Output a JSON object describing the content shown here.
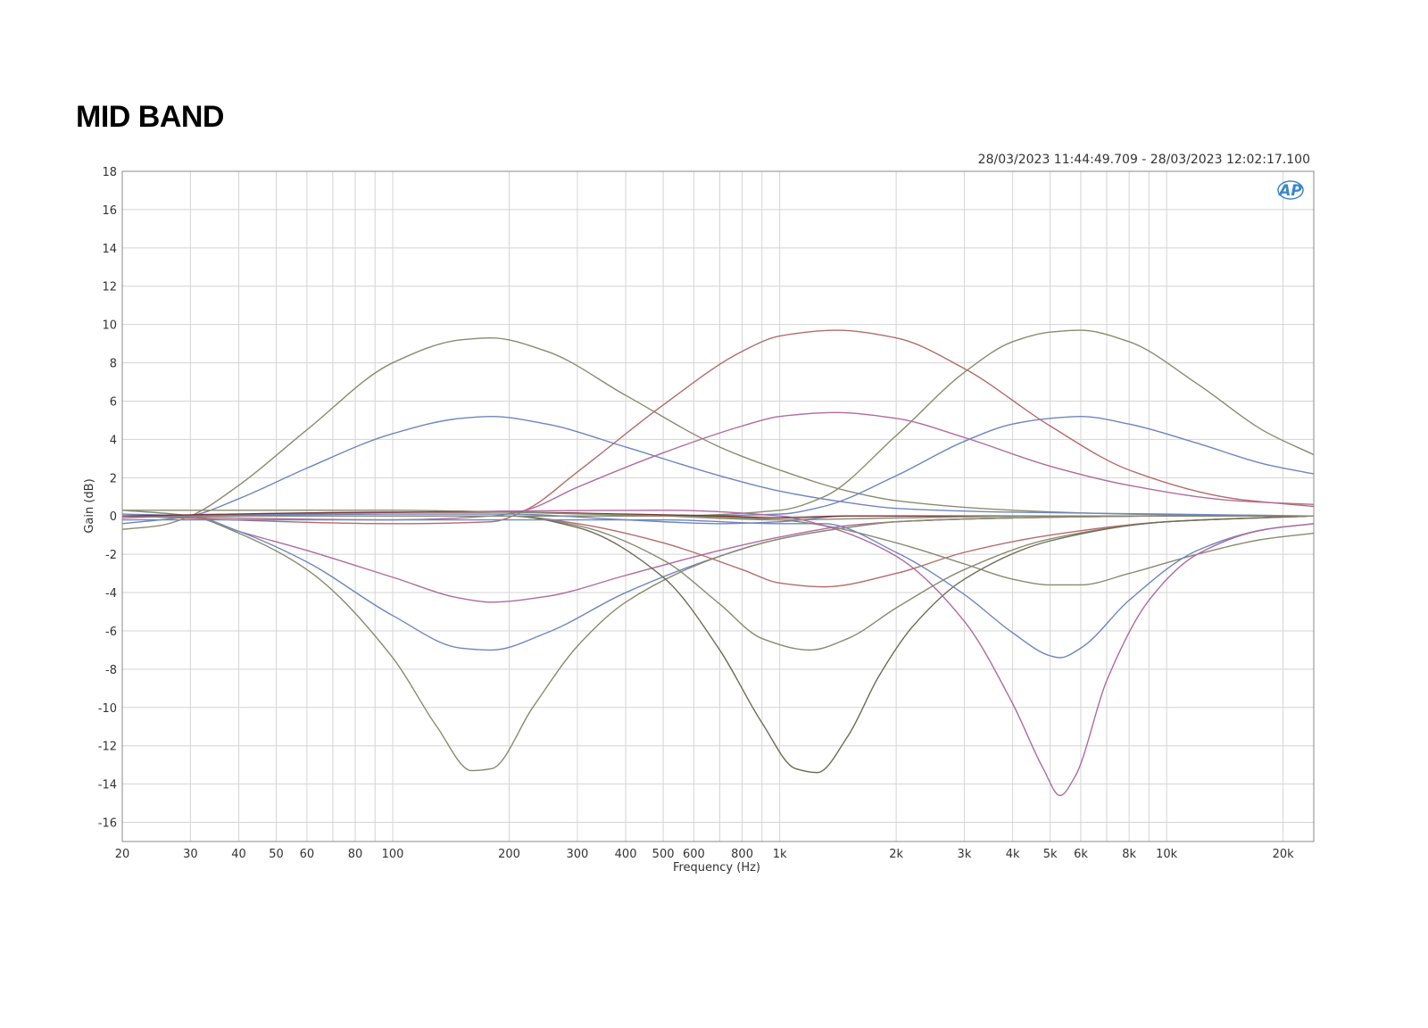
{
  "page": {
    "title": "MID BAND",
    "timestamp": "28/03/2023 11:44:49.709 - 28/03/2023 12:02:17.100",
    "logo_text": "AP"
  },
  "chart_data": {
    "type": "line",
    "title": "",
    "xlabel": "Frequency (Hz)",
    "ylabel": "Gain (dB)",
    "xscale": "log",
    "xlim": [
      20,
      24000
    ],
    "ylim": [
      -17,
      18
    ],
    "grid": true,
    "legend": "none",
    "x_ticks": [
      {
        "v": 20,
        "label": "20"
      },
      {
        "v": 30,
        "label": "30"
      },
      {
        "v": 40,
        "label": "40"
      },
      {
        "v": 50,
        "label": "50"
      },
      {
        "v": 60,
        "label": "60"
      },
      {
        "v": 80,
        "label": "80"
      },
      {
        "v": 100,
        "label": "100"
      },
      {
        "v": 200,
        "label": "200"
      },
      {
        "v": 300,
        "label": "300"
      },
      {
        "v": 400,
        "label": "400"
      },
      {
        "v": 500,
        "label": "500"
      },
      {
        "v": 600,
        "label": "600"
      },
      {
        "v": 800,
        "label": "800"
      },
      {
        "v": 1000,
        "label": "1k"
      },
      {
        "v": 2000,
        "label": "2k"
      },
      {
        "v": 3000,
        "label": "3k"
      },
      {
        "v": 4000,
        "label": "4k"
      },
      {
        "v": 5000,
        "label": "5k"
      },
      {
        "v": 6000,
        "label": "6k"
      },
      {
        "v": 8000,
        "label": "8k"
      },
      {
        "v": 10000,
        "label": "10k"
      },
      {
        "v": 20000,
        "label": "20k"
      }
    ],
    "y_ticks": [
      18,
      16,
      14,
      12,
      10,
      8,
      6,
      4,
      2,
      0,
      -2,
      -4,
      -6,
      -8,
      -10,
      -12,
      -14,
      -16
    ],
    "colors": {
      "olive": "#8a8a6e",
      "blue": "#6d86bf",
      "red": "#b56a6a",
      "pink": "#b06a9e",
      "dark_olive": "#6e6b55",
      "dark_red": "#7a3535",
      "grid": "#d4d4d4",
      "frame": "#888888"
    },
    "series": [
      {
        "color": "olive",
        "x": [
          20,
          25,
          30,
          40,
          60,
          100,
          150,
          180,
          250,
          400,
          700,
          1000,
          1500,
          2000,
          4000,
          8000,
          20000,
          24000
        ],
        "y": [
          -0.7,
          -0.5,
          0,
          1.6,
          4.5,
          8,
          9.2,
          9.3,
          8.6,
          6.3,
          3.6,
          2.4,
          1.3,
          0.8,
          0.3,
          0.1,
          0,
          0
        ]
      },
      {
        "color": "blue",
        "x": [
          20,
          30,
          40,
          60,
          100,
          150,
          180,
          250,
          400,
          700,
          1000,
          1500,
          2000,
          4000,
          10000,
          24000
        ],
        "y": [
          -0.4,
          0,
          0.9,
          2.5,
          4.3,
          5.1,
          5.2,
          4.8,
          3.6,
          2.1,
          1.3,
          0.7,
          0.4,
          0.2,
          0.1,
          0
        ]
      },
      {
        "color": "pink",
        "x": [
          20,
          30,
          40,
          60,
          100,
          150,
          180,
          250,
          400,
          700,
          1000,
          1500,
          2000,
          4000,
          10000,
          24000
        ],
        "y": [
          -0.1,
          0,
          -0.8,
          -1.8,
          -3.2,
          -4.3,
          -4.5,
          -4.2,
          -3.1,
          -1.8,
          -1.1,
          -0.5,
          -0.3,
          -0.1,
          0,
          0
        ]
      },
      {
        "color": "blue",
        "x": [
          20,
          30,
          40,
          60,
          100,
          150,
          180,
          250,
          400,
          700,
          1000,
          1500,
          2000,
          4000,
          10000,
          24000
        ],
        "y": [
          0.1,
          0,
          -0.8,
          -2.4,
          -5.2,
          -6.9,
          -7,
          -6.1,
          -4,
          -2.1,
          -1.2,
          -0.6,
          -0.3,
          -0.1,
          0,
          0
        ]
      },
      {
        "color": "olive",
        "x": [
          20,
          30,
          40,
          60,
          100,
          130,
          160,
          180,
          230,
          300,
          400,
          700,
          1000,
          1500,
          2000,
          4000,
          10000,
          24000
        ],
        "y": [
          0.3,
          0,
          -0.9,
          -2.8,
          -7.4,
          -11,
          -13.3,
          -13.2,
          -10,
          -6.8,
          -4.5,
          -2.1,
          -1.2,
          -0.6,
          -0.3,
          -0.1,
          0,
          0
        ]
      },
      {
        "color": "red",
        "x": [
          20,
          100,
          180,
          220,
          300,
          500,
          800,
          1000,
          1400,
          2000,
          3000,
          5000,
          8000,
          15000,
          24000
        ],
        "y": [
          0,
          -0.4,
          -0.3,
          0.3,
          2.3,
          5.8,
          8.6,
          9.4,
          9.7,
          9.3,
          7.7,
          4.7,
          2.4,
          0.9,
          0.5
        ]
      },
      {
        "color": "pink",
        "x": [
          20,
          100,
          180,
          220,
          300,
          500,
          800,
          1000,
          1400,
          2000,
          3000,
          5000,
          8000,
          15000,
          24000
        ],
        "y": [
          0,
          -0.2,
          0,
          0.3,
          1.5,
          3.3,
          4.7,
          5.2,
          5.4,
          5.1,
          4.1,
          2.6,
          1.6,
          0.8,
          0.6
        ]
      },
      {
        "color": "red",
        "x": [
          20,
          200,
          300,
          500,
          800,
          1000,
          1300,
          2000,
          3000,
          5000,
          10000,
          24000
        ],
        "y": [
          0,
          0,
          -0.4,
          -1.4,
          -2.8,
          -3.5,
          -3.7,
          -3,
          -1.9,
          -1,
          -0.3,
          0
        ]
      },
      {
        "color": "olive",
        "x": [
          20,
          200,
          300,
          500,
          700,
          900,
          1200,
          1500,
          2000,
          3000,
          5000,
          10000,
          24000
        ],
        "y": [
          0,
          0,
          -0.5,
          -2.3,
          -4.6,
          -6.4,
          -7,
          -6.4,
          -4.8,
          -2.8,
          -1.2,
          -0.3,
          0
        ]
      },
      {
        "color": "dark_olive",
        "x": [
          20,
          200,
          300,
          500,
          700,
          900,
          1100,
          1250,
          1500,
          1800,
          2200,
          3000,
          5000,
          10000,
          24000
        ],
        "y": [
          0,
          0,
          -0.6,
          -3.2,
          -7,
          -10.8,
          -13.2,
          -13.4,
          -11.5,
          -8.4,
          -5.8,
          -3.3,
          -1.3,
          -0.3,
          0
        ]
      },
      {
        "color": "olive",
        "x": [
          20,
          500,
          1000,
          1300,
          2000,
          3000,
          4000,
          5000,
          6000,
          8000,
          12000,
          18000,
          24000
        ],
        "y": [
          0,
          0,
          0.3,
          1,
          4.2,
          7.5,
          9.1,
          9.6,
          9.7,
          9.1,
          6.9,
          4.4,
          3.2
        ]
      },
      {
        "color": "blue",
        "x": [
          20,
          500,
          1000,
          1300,
          2000,
          3000,
          4000,
          5000,
          6000,
          8000,
          12000,
          18000,
          24000
        ],
        "y": [
          0,
          0,
          0.1,
          0.5,
          2.1,
          3.9,
          4.8,
          5.1,
          5.2,
          4.8,
          3.8,
          2.7,
          2.2
        ]
      },
      {
        "color": "olive",
        "x": [
          20,
          500,
          1000,
          1300,
          2000,
          3000,
          4000,
          5000,
          6000,
          8000,
          12000,
          18000,
          24000
        ],
        "y": [
          0,
          0,
          -0.2,
          -0.5,
          -1.4,
          -2.5,
          -3.3,
          -3.6,
          -3.6,
          -3,
          -2,
          -1.2,
          -0.9
        ]
      },
      {
        "color": "blue",
        "x": [
          20,
          500,
          1000,
          1300,
          2000,
          3000,
          4000,
          5000,
          5300,
          6000,
          8000,
          12000,
          18000,
          24000
        ],
        "y": [
          -0.2,
          -0.2,
          -0.4,
          -0.4,
          -1.9,
          -4.1,
          -6.1,
          -7.3,
          -7.4,
          -6.9,
          -4.4,
          -1.8,
          -0.7,
          -0.4
        ]
      },
      {
        "color": "pink",
        "x": [
          20,
          500,
          1000,
          1300,
          2000,
          3000,
          4000,
          4800,
          5300,
          5800,
          7000,
          9000,
          12000,
          18000,
          24000
        ],
        "y": [
          0,
          0.3,
          0,
          -0.5,
          -2.1,
          -5.5,
          -9.8,
          -13.2,
          -14.6,
          -13.6,
          -8.6,
          -4.4,
          -2,
          -0.7,
          -0.4
        ]
      },
      {
        "color": "blue",
        "x": [
          20,
          100,
          200,
          400,
          700,
          1000,
          1500,
          2000,
          4000,
          10000,
          24000
        ],
        "y": [
          0,
          0.1,
          0.1,
          -0.2,
          -0.4,
          -0.3,
          0,
          0,
          0,
          0,
          0
        ]
      },
      {
        "color": "dark_red",
        "x": [
          20,
          100,
          200,
          400,
          700,
          1000,
          1500,
          2000,
          4000,
          10000,
          24000
        ],
        "y": [
          0,
          0.2,
          0.2,
          0.1,
          0,
          -0.1,
          0,
          0,
          0,
          0,
          0
        ]
      },
      {
        "color": "olive",
        "x": [
          20,
          100,
          200,
          500,
          1000,
          2000,
          5000,
          10000,
          24000
        ],
        "y": [
          0.3,
          0.3,
          0.2,
          0,
          -0.2,
          -0.1,
          0,
          0,
          0
        ]
      }
    ]
  }
}
